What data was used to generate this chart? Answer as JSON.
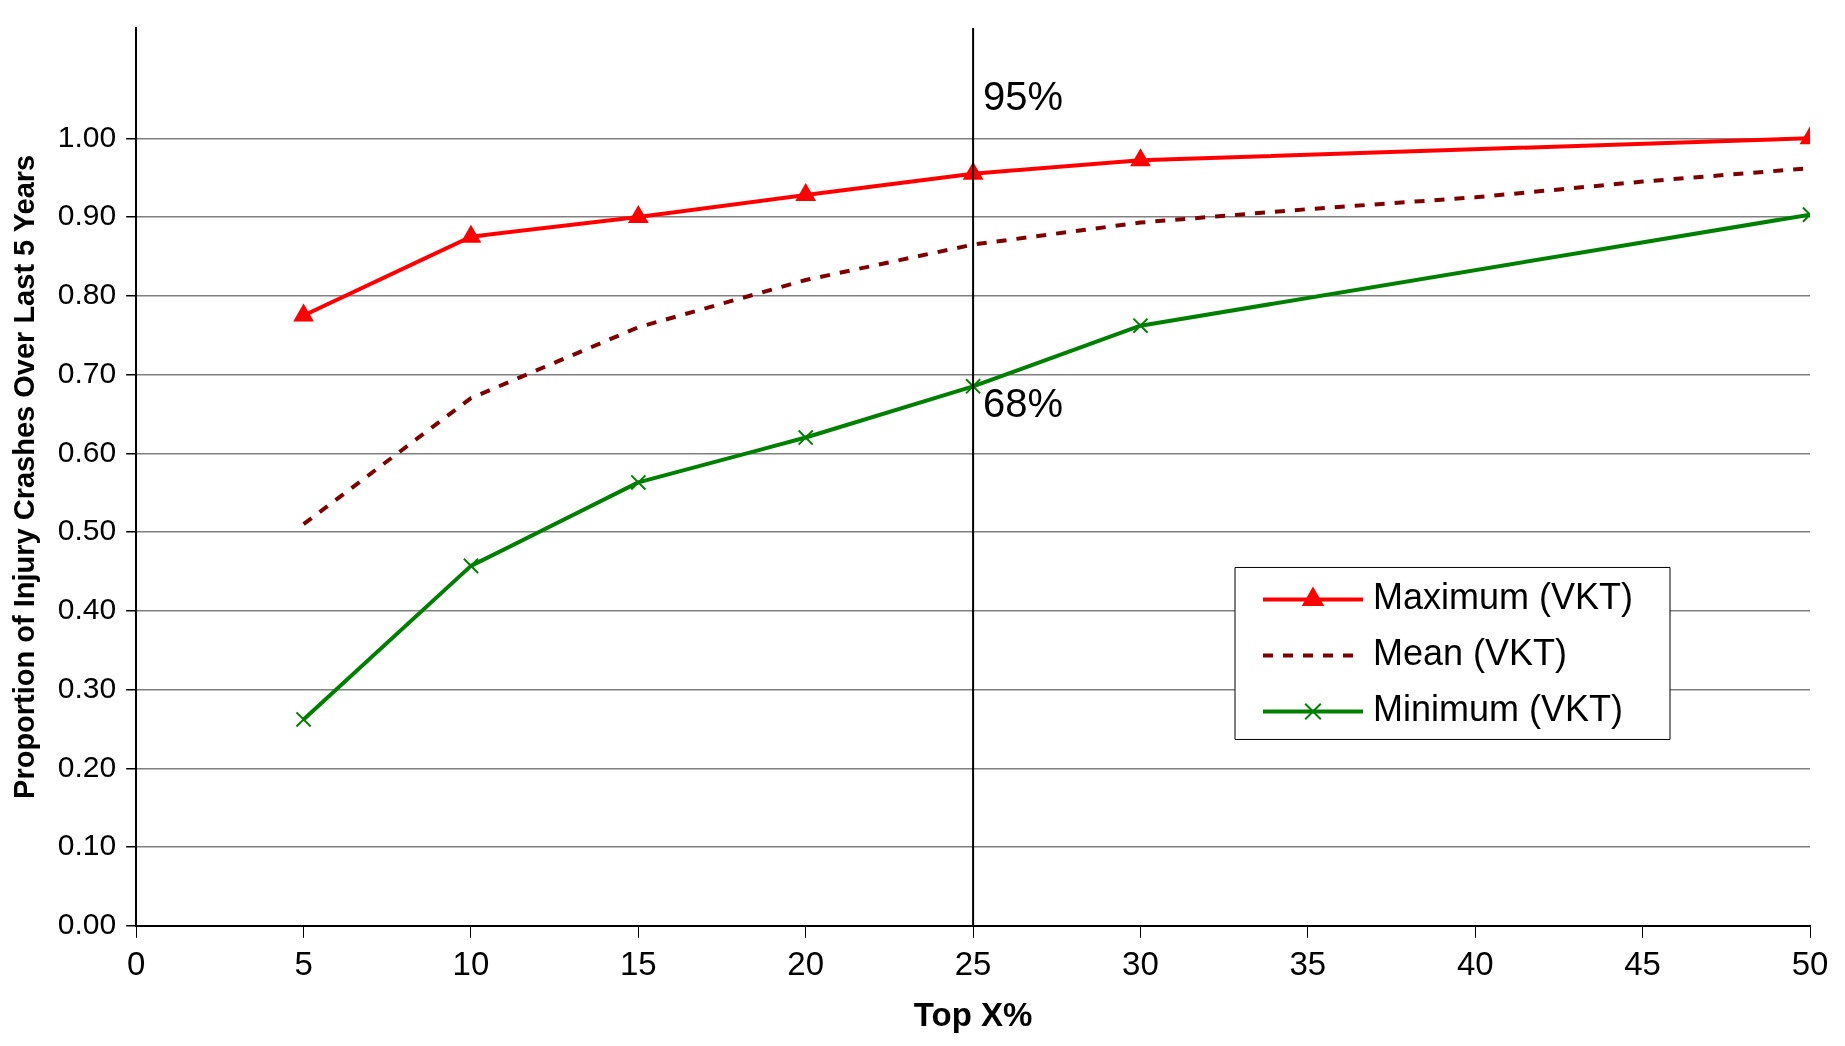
{
  "chart_data": {
    "type": "line",
    "xlabel": "Top X%",
    "ylabel": "Proportion of Injury Crashes Over Last 5 Years",
    "xlim": [
      0,
      50
    ],
    "xticks": [
      0,
      5,
      10,
      15,
      20,
      25,
      30,
      35,
      40,
      45,
      50
    ],
    "ylim": [
      0,
      1.14
    ],
    "yticks": [
      {
        "value": 0,
        "label": "0.00"
      },
      {
        "value": 0.1,
        "label": "0.10"
      },
      {
        "value": 0.2,
        "label": "0.20"
      },
      {
        "value": 0.3,
        "label": "0.30"
      },
      {
        "value": 0.4,
        "label": "0.40"
      },
      {
        "value": 0.5,
        "label": "0.50"
      },
      {
        "value": 0.6,
        "label": "0.60"
      },
      {
        "value": 0.7,
        "label": "0.70"
      },
      {
        "value": 0.8,
        "label": "0.80"
      },
      {
        "value": 0.9,
        "label": "0.90"
      },
      {
        "value": 1,
        "label": "1.00"
      }
    ],
    "grid": "y",
    "legend": "bottom right",
    "series": [
      {
        "name": "Maximum (VKT)",
        "color": "#ff0000",
        "marker": "triangle",
        "line_style": "solid",
        "x": [
          5,
          10,
          15,
          20,
          25,
          30,
          50
        ],
        "values": [
          0.775,
          0.875,
          0.9,
          0.928,
          0.955,
          0.972,
          1.0
        ]
      },
      {
        "name": "Mean (VKT)",
        "color": "#800000",
        "marker": "none",
        "line_style": "dashed",
        "x": [
          5,
          10,
          15,
          20,
          25,
          30,
          35,
          40,
          45,
          50
        ],
        "values": [
          0.51,
          0.67,
          0.76,
          0.82,
          0.865,
          0.893,
          0.91,
          0.925,
          0.945,
          0.962
        ]
      },
      {
        "name": "Minimum (VKT)",
        "color": "#008000",
        "marker": "cross",
        "line_style": "solid",
        "x": [
          5,
          10,
          15,
          20,
          25,
          30,
          50
        ],
        "values": [
          0.262,
          0.457,
          0.563,
          0.62,
          0.685,
          0.762,
          0.903
        ]
      }
    ],
    "ref_lines": [
      {
        "axis": "x",
        "value": 25,
        "color": "#000000"
      }
    ],
    "annotations": [
      {
        "text": "95%",
        "x": 25,
        "y": 0.955
      },
      {
        "text": "68%",
        "x": 25,
        "y": 0.685
      }
    ]
  }
}
